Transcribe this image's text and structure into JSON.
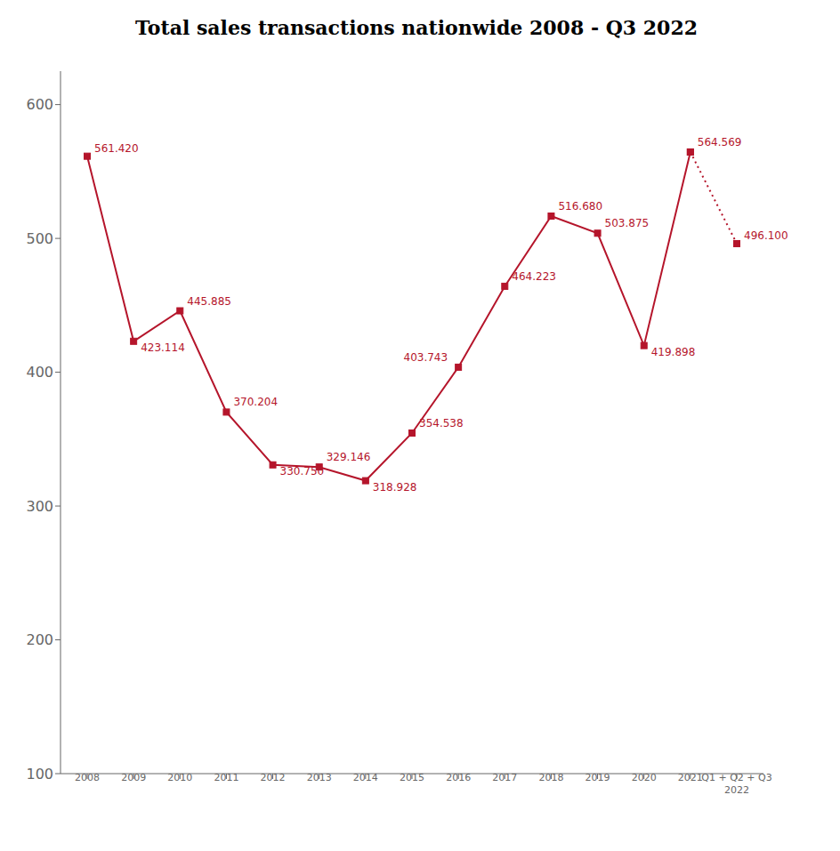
{
  "chart_data": {
    "type": "line",
    "title": "Total sales transactions nationwide 2008 - Q3 2022",
    "categories": [
      "2008",
      "2009",
      "2010",
      "2011",
      "2012",
      "2013",
      "2014",
      "2015",
      "2016",
      "2017",
      "2018",
      "2019",
      "2020",
      "2021",
      "Q1 + Q2 + Q3\n2022"
    ],
    "series": [
      {
        "color": "#b5152b",
        "marker": "square",
        "line_style": "solid",
        "values": [
          561.42,
          423.114,
          445.885,
          370.204,
          330.75,
          329.146,
          318.928,
          354.538,
          403.743,
          464.223,
          516.68,
          503.875,
          419.898,
          564.569,
          null
        ],
        "value_labels": [
          "561.420",
          "423.114",
          "445.885",
          "370.204",
          "330.750",
          "329.146",
          "318.928",
          "354.538",
          "403.743",
          "464.223",
          "516.680",
          "503.875",
          "419.898",
          "564.569",
          null
        ]
      },
      {
        "color": "#b5152b",
        "marker": "square",
        "line_style": "dotted",
        "values": [
          null,
          null,
          null,
          null,
          null,
          null,
          null,
          null,
          null,
          null,
          null,
          null,
          null,
          564.569,
          496.1
        ],
        "value_labels": [
          null,
          null,
          null,
          null,
          null,
          null,
          null,
          null,
          null,
          null,
          null,
          null,
          null,
          null,
          "496.100"
        ]
      }
    ],
    "ylim": [
      100,
      625
    ],
    "yticks": [
      100,
      200,
      300,
      400,
      500,
      600
    ],
    "grid": false,
    "data_labels": true
  }
}
